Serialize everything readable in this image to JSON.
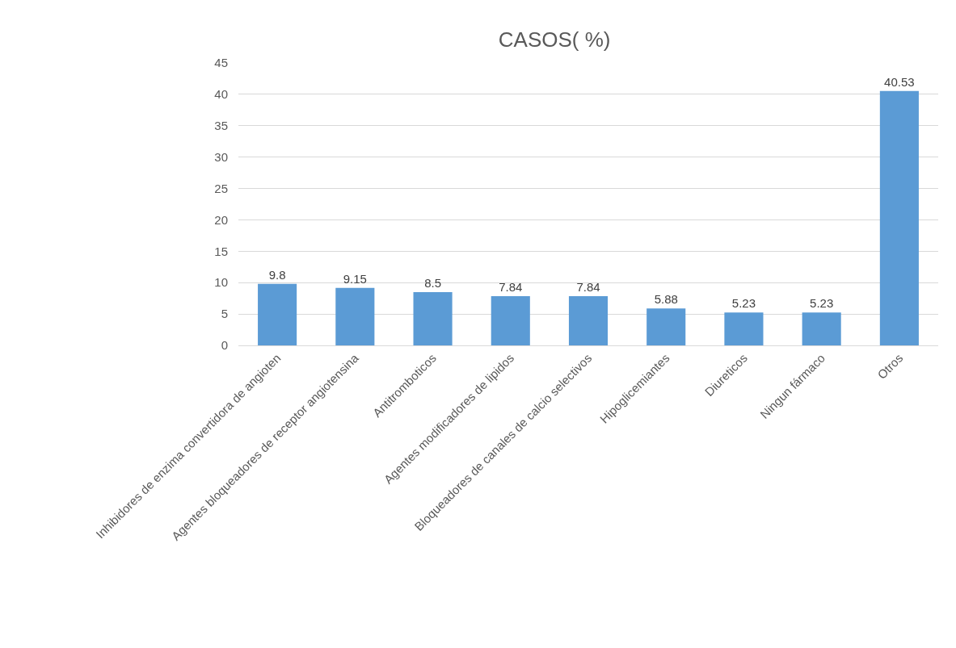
{
  "chart_data": {
    "type": "bar",
    "title": "CASOS( %)",
    "categories": [
      "Inhibidores de enzima convertidora de angioten",
      "Agentes bloqueadores de receptor angiotensina",
      "Antitromboticos",
      "Agentes modificadores de lipidos",
      "Bloqueadores de canales de calcio selectivos",
      "Hipoglicemiantes",
      "Diureticos",
      "Ningun fármaco",
      "Otros"
    ],
    "values": [
      9.8,
      9.15,
      8.5,
      7.84,
      7.84,
      5.88,
      5.23,
      5.23,
      40.53
    ],
    "color": "#5b9bd5",
    "ylim": [
      0,
      45
    ],
    "yticks": [
      0,
      5,
      10,
      15,
      20,
      25,
      30,
      35,
      40,
      45
    ],
    "grid": "y",
    "data_labels": true
  }
}
